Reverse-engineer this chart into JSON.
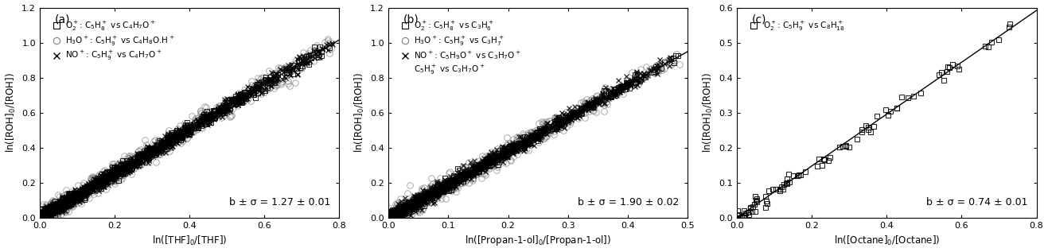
{
  "panels": [
    {
      "label": "(a)",
      "xlabel": "ln([THF]$_0$/[THF])",
      "ylabel": "ln([ROH]$_0$/[ROH])",
      "xlim": [
        0,
        0.8
      ],
      "ylim": [
        0,
        1.2
      ],
      "xticks": [
        0.0,
        0.2,
        0.4,
        0.6,
        0.8
      ],
      "yticks": [
        0.0,
        0.2,
        0.4,
        0.6,
        0.8,
        1.0,
        1.2
      ],
      "slope": 1.27,
      "annotation": "b ± σ = 1.27 ± 0.01",
      "legend": [
        {
          "marker": "s",
          "label": "O$_2^+$: C$_5$H$_8^+$ vs C$_4$H$_7$O$^+$",
          "color": "black"
        },
        {
          "marker": "o",
          "label": "H$_3$O$^+$: C$_5$H$_9^+$ vs C$_4$H$_8$O.H$^+$",
          "color": "gray"
        },
        {
          "marker": "x",
          "label": "NO$^+$: C$_5$H$_9^+$ vs C$_4$H$_7$O$^+$",
          "color": "black"
        }
      ],
      "series": [
        {
          "marker": "s",
          "n": 700,
          "noise": 0.018,
          "color": "black",
          "alpha": 0.85,
          "ms": 4.5,
          "mew": 0.7
        },
        {
          "marker": "o",
          "n": 700,
          "noise": 0.03,
          "color": "gray",
          "alpha": 0.65,
          "ms": 5.5,
          "mew": 0.7
        },
        {
          "marker": "x",
          "n": 900,
          "noise": 0.02,
          "color": "black",
          "alpha": 0.85,
          "ms": 4.0,
          "mew": 0.9
        }
      ]
    },
    {
      "label": "(b)",
      "xlabel": "ln([Propan-1-ol]$_0$/[Propan-1-ol])",
      "ylabel": "ln([ROH]$_0$/[ROH])",
      "xlim": [
        0,
        0.5
      ],
      "ylim": [
        0,
        1.2
      ],
      "xticks": [
        0.0,
        0.1,
        0.2,
        0.3,
        0.4,
        0.5
      ],
      "yticks": [
        0.0,
        0.2,
        0.4,
        0.6,
        0.8,
        1.0,
        1.2
      ],
      "slope": 1.9,
      "line_xmax": 0.5,
      "annotation": "b ± σ = 1.90 ± 0.02",
      "legend": [
        {
          "marker": "s",
          "label": "O$_2^+$: C$_5$H$_8^+$ vs C$_3$H$_6^+$",
          "color": "black"
        },
        {
          "marker": "o",
          "label": "H$_3$O$^+$: C$_5$H$_9^+$ vs C$_3$H$_7^+$",
          "color": "gray"
        },
        {
          "marker": "x",
          "label": "NO$^+$: C$_5$H$_9$O$^+$ vs C$_3$H$_7$O$^+$",
          "color": "black"
        },
        {
          "marker": "none",
          "label": "C$_5$H$_9^+$ vs C$_3$H$_7$O$^+$",
          "color": "black"
        }
      ],
      "series": [
        {
          "marker": "s",
          "n": 500,
          "noise": 0.015,
          "color": "black",
          "alpha": 0.85,
          "ms": 4.5,
          "mew": 0.7
        },
        {
          "marker": "o",
          "n": 600,
          "noise": 0.03,
          "color": "gray",
          "alpha": 0.65,
          "ms": 5.5,
          "mew": 0.7
        },
        {
          "marker": "x",
          "n": 1000,
          "noise": 0.02,
          "color": "black",
          "alpha": 0.85,
          "ms": 4.0,
          "mew": 0.9
        }
      ]
    },
    {
      "label": "(c)",
      "xlabel": "ln([Octane]$_0$/[Octane])",
      "ylabel": "ln([ROH]$_0$/[ROH])",
      "xlim": [
        0,
        0.8
      ],
      "ylim": [
        0,
        0.6
      ],
      "xticks": [
        0.0,
        0.2,
        0.4,
        0.6,
        0.8
      ],
      "yticks": [
        0.0,
        0.1,
        0.2,
        0.3,
        0.4,
        0.5,
        0.6
      ],
      "slope": 0.74,
      "annotation": "b ± σ = 0.74 ± 0.01",
      "legend": [
        {
          "marker": "s",
          "label": "O$_2^+$: C$_5$H$_9^+$ vs C$_8$H$_{18}^+$",
          "color": "black"
        }
      ],
      "series": [
        {
          "marker": "s",
          "n": 90,
          "noise": 0.012,
          "color": "black",
          "alpha": 0.85,
          "ms": 5.0,
          "mew": 0.8
        }
      ]
    }
  ],
  "figsize": [
    13.17,
    3.17
  ],
  "dpi": 100,
  "bg_color": "#ffffff",
  "line_color": "#000000",
  "fontsize_label": 8.5,
  "fontsize_tick": 8,
  "fontsize_legend": 7.5,
  "fontsize_annot": 9,
  "fontsize_panel_label": 10
}
